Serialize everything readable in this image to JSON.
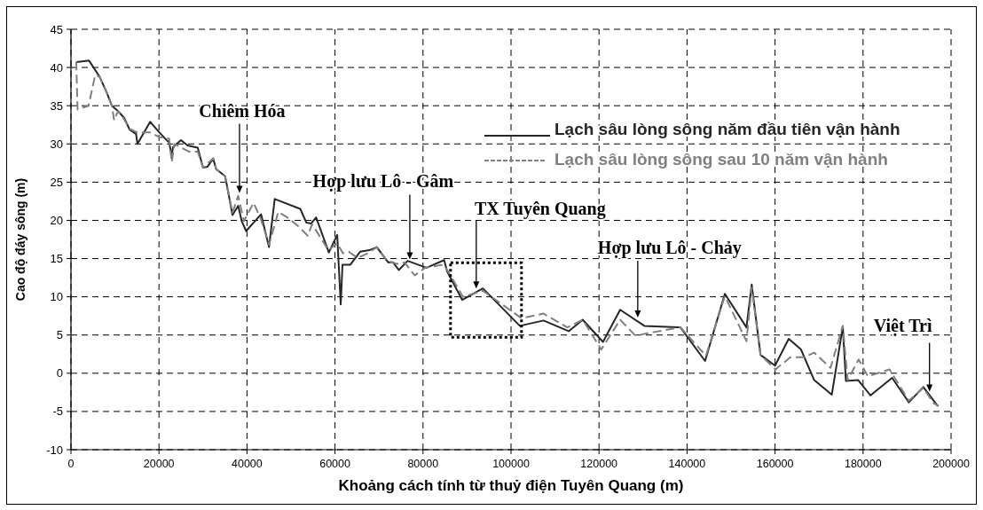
{
  "chart_data": {
    "type": "line",
    "xlabel": "Khoảng cách tính từ thuỷ điện Tuyên Quang (m)",
    "ylabel": "Cao độ đáy sông (m)",
    "xlim": [
      0,
      200000
    ],
    "xticks": [
      0,
      20000,
      40000,
      60000,
      80000,
      100000,
      120000,
      140000,
      160000,
      180000,
      200000
    ],
    "ylim": [
      -10,
      45
    ],
    "yticks": [
      -10,
      -5,
      0,
      5,
      10,
      15,
      20,
      25,
      30,
      35,
      40,
      45
    ],
    "grid": true,
    "legend": "top right",
    "series": [
      {
        "name": "Lạch sâu lòng sông năm đầu tiên vận hành",
        "color": "#262626",
        "line_style": "solid",
        "x": [
          1300,
          4100,
          6500,
          8000,
          9300,
          10700,
          12100,
          13300,
          14800,
          15100,
          18000,
          20100,
          21900,
          22300,
          22900,
          23200,
          25000,
          26500,
          28800,
          30000,
          31000,
          32300,
          33000,
          35000,
          35300,
          36700,
          38000,
          38800,
          39800,
          43200,
          45000,
          46300,
          52100,
          53500,
          54600,
          55700,
          58600,
          60500,
          61300,
          61700,
          63500,
          65700,
          67800,
          69500,
          72100,
          73200,
          74500,
          76500,
          80800,
          84800,
          85500,
          88900,
          93600,
          102000,
          107400,
          113100,
          116300,
          120900,
          124800,
          130300,
          138500,
          144100,
          148600,
          153500,
          154700,
          156700,
          160000,
          163100,
          165900,
          168900,
          172900,
          175400,
          176100,
          178900,
          181700,
          186600,
          190400,
          193700,
          197000
        ],
        "values": [
          40.7,
          40.9,
          38.8,
          36.9,
          35.0,
          34.3,
          33.4,
          31.9,
          31.3,
          30.0,
          32.9,
          31.5,
          30.4,
          30.2,
          28.4,
          29.6,
          30.5,
          29.8,
          29.5,
          26.9,
          27.0,
          28.1,
          26.7,
          25.8,
          25.0,
          20.7,
          21.9,
          19.9,
          18.6,
          20.8,
          16.5,
          22.8,
          21.5,
          19.7,
          19.6,
          20.4,
          15.8,
          18.1,
          9.0,
          14.2,
          14.2,
          15.9,
          16.1,
          16.5,
          14.5,
          14.5,
          13.5,
          14.7,
          13.8,
          14.8,
          13.3,
          9.6,
          11.1,
          6.2,
          6.9,
          5.5,
          7.0,
          4.1,
          8.3,
          6.2,
          6.0,
          1.6,
          10.4,
          6.0,
          11.6,
          2.4,
          1.0,
          4.5,
          3.1,
          -0.9,
          -2.8,
          6.1,
          -1.0,
          -0.9,
          -2.9,
          -0.6,
          -3.8,
          -1.8,
          -4.3
        ]
      },
      {
        "name": "Lạch sâu lòng sông sau 10 năm vận hành",
        "color": "#808080",
        "line_style": "dashed",
        "x": [
          1200,
          1500,
          4000,
          5500,
          6500,
          8000,
          9300,
          9800,
          10700,
          12100,
          13300,
          15100,
          18000,
          20100,
          22300,
          22900,
          23500,
          26800,
          28800,
          30000,
          32300,
          33000,
          35000,
          36700,
          38000,
          39300,
          41500,
          43200,
          45000,
          47100,
          49400,
          51700,
          53800,
          54800,
          58500,
          60500,
          61800,
          63100,
          65100,
          67500,
          69500,
          71800,
          74100,
          75800,
          78100,
          80500,
          84500,
          85500,
          89100,
          93600,
          102400,
          107400,
          112800,
          116300,
          120500,
          124800,
          128300,
          131600,
          138500,
          144300,
          148600,
          153500,
          154700,
          156700,
          160100,
          163500,
          166600,
          168900,
          172600,
          175400,
          176500,
          179000,
          181100,
          186000,
          190400,
          193700,
          196000,
          197200
        ],
        "values": [
          40.8,
          34.5,
          35.0,
          39.0,
          38.8,
          36.9,
          35.0,
          33.1,
          34.3,
          33.2,
          32.0,
          31.5,
          31.5,
          30.9,
          30.7,
          27.6,
          30.0,
          29.0,
          29.0,
          26.9,
          28.1,
          26.7,
          25.8,
          21.0,
          23.2,
          19.9,
          22.3,
          20.1,
          16.8,
          21.1,
          20.3,
          19.2,
          18.0,
          19.5,
          16.1,
          17.0,
          15.7,
          15.9,
          15.1,
          15.7,
          16.5,
          14.7,
          14.3,
          14.5,
          12.8,
          13.8,
          14.2,
          13.5,
          10.0,
          10.8,
          7.2,
          7.8,
          6.0,
          7.0,
          3.1,
          7.0,
          4.9,
          5.3,
          6.0,
          2.3,
          10.1,
          4.2,
          11.2,
          2.4,
          0.5,
          2.1,
          2.1,
          2.7,
          0.7,
          6.2,
          -0.9,
          1.8,
          -0.4,
          0.5,
          -3.6,
          -1.9,
          -3.9,
          -4.3
        ]
      }
    ],
    "annotations": [
      {
        "text": "Chiêm Hóa",
        "x": 38300,
        "y": 23.6
      },
      {
        "text": "Hợp lưu Lô - Gâm",
        "x": 77000,
        "y": 14.9
      },
      {
        "text": "TX Tuyên Quang",
        "x": 92100,
        "y": 11.1
      },
      {
        "text": "Hợp lưu Lô - Chảy",
        "x": 128800,
        "y": 7.3
      },
      {
        "text": "Việt Trì",
        "x": 195100,
        "y": -2.4
      }
    ]
  }
}
